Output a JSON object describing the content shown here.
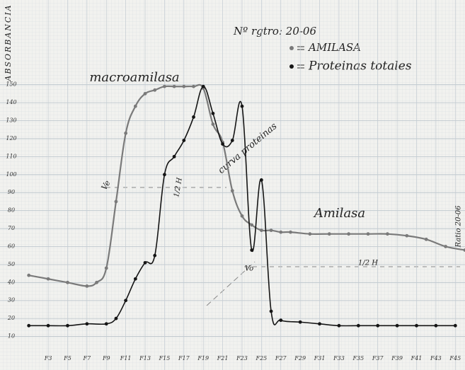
{
  "chart_data": {
    "type": "line",
    "title": "Nº rgtro: 20-06",
    "ylabel": "ABSORBANCIA",
    "annotations": [
      "macroamilasa",
      "curva proteinas",
      "Amilasa",
      "Ve",
      "Vo",
      "1/2 H",
      "1/2 H",
      "Ratio 20-06"
    ],
    "xlim": [
      0,
      46
    ],
    "ylim": [
      0,
      190
    ],
    "xticks": [
      {
        "value": 3,
        "label": "F3"
      },
      {
        "value": 5,
        "label": "F5"
      },
      {
        "value": 7,
        "label": "F7"
      },
      {
        "value": 9,
        "label": "F9"
      },
      {
        "value": 11,
        "label": "F11"
      },
      {
        "value": 13,
        "label": "F13"
      },
      {
        "value": 15,
        "label": "F15"
      },
      {
        "value": 17,
        "label": "F17"
      },
      {
        "value": 19,
        "label": "F19"
      },
      {
        "value": 21,
        "label": "F21"
      },
      {
        "value": 23,
        "label": "F23"
      },
      {
        "value": 25,
        "label": "F25"
      },
      {
        "value": 27,
        "label": "F27"
      },
      {
        "value": 29,
        "label": "F29"
      },
      {
        "value": 31,
        "label": "F31"
      },
      {
        "value": 33,
        "label": "F33"
      },
      {
        "value": 35,
        "label": "F35"
      },
      {
        "value": 37,
        "label": "F37"
      },
      {
        "value": 39,
        "label": "F39"
      },
      {
        "value": 41,
        "label": "F41"
      },
      {
        "value": 43,
        "label": "F43"
      },
      {
        "value": 45,
        "label": "F45"
      }
    ],
    "yticks": [
      10,
      20,
      30,
      40,
      50,
      60,
      70,
      80,
      90,
      100,
      110,
      120,
      130,
      140,
      150
    ],
    "series": [
      {
        "name": "AMILASA",
        "color": "#7a7a7a",
        "x": [
          1,
          3,
          5,
          7,
          8,
          9,
          10,
          11,
          12,
          13,
          14,
          15,
          16,
          17,
          18,
          19,
          20,
          21,
          22,
          23,
          24,
          25,
          26,
          27,
          28,
          30,
          32,
          34,
          36,
          38,
          40,
          42,
          44,
          46
        ],
        "values": [
          44,
          42,
          40,
          38,
          40,
          48,
          85,
          123,
          138,
          145,
          147,
          149,
          149,
          149,
          149,
          148,
          128,
          118,
          91,
          77,
          72,
          69,
          69,
          68,
          68,
          67,
          67,
          67,
          67,
          67,
          66,
          64,
          60,
          58
        ]
      },
      {
        "name": "Proteinas totales",
        "color": "#151515",
        "x": [
          1,
          3,
          5,
          7,
          9,
          10,
          11,
          12,
          13,
          14,
          15,
          16,
          17,
          18,
          19,
          20,
          21,
          22,
          23,
          24,
          25,
          26,
          27,
          29,
          31,
          33,
          35,
          37,
          39,
          41,
          43,
          45
        ],
        "values": [
          16,
          16,
          16,
          17,
          17,
          20,
          30,
          42,
          51,
          55,
          100,
          110,
          119,
          132,
          149,
          134,
          117,
          119,
          138,
          58,
          97,
          24,
          19,
          18,
          17,
          16,
          16,
          16,
          16,
          16,
          16,
          16
        ]
      }
    ]
  }
}
